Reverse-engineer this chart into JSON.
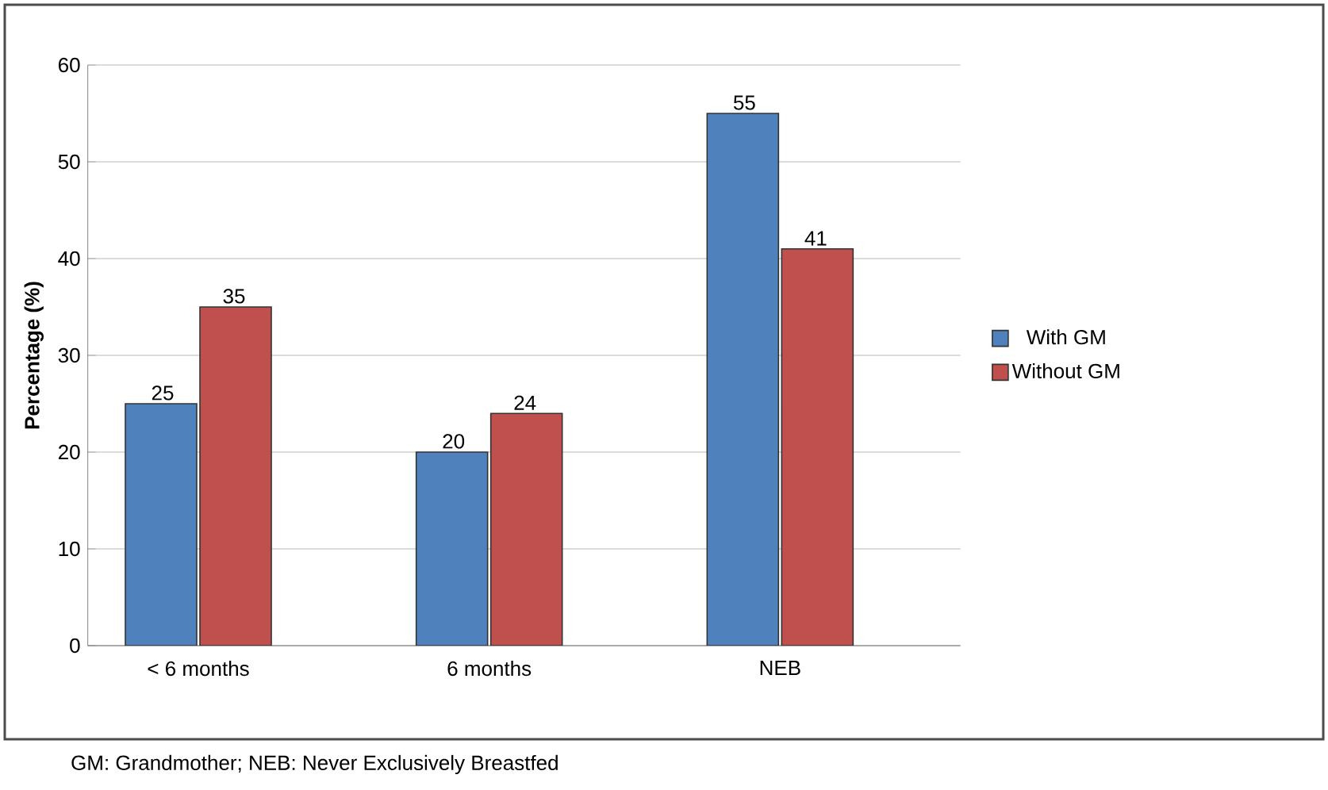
{
  "chart_data": {
    "type": "bar",
    "ylabel": "Percentage (%)",
    "categories": [
      "< 6 months",
      "6 months",
      "NEB"
    ],
    "series": [
      {
        "name": "With GM",
        "color": "#4f81bd",
        "values": [
          25,
          20,
          55
        ]
      },
      {
        "name": "Without GM",
        "color": "#c0504d",
        "values": [
          35,
          24,
          41
        ]
      }
    ],
    "ylim": [
      0,
      60
    ],
    "yticks": [
      0,
      10,
      20,
      30,
      40,
      50,
      60
    ],
    "grid": "y",
    "legend": "right",
    "data_labels": true,
    "annotations": [
      "GM: Grandmother; NEB: Never Exclusively Breastfed"
    ]
  }
}
